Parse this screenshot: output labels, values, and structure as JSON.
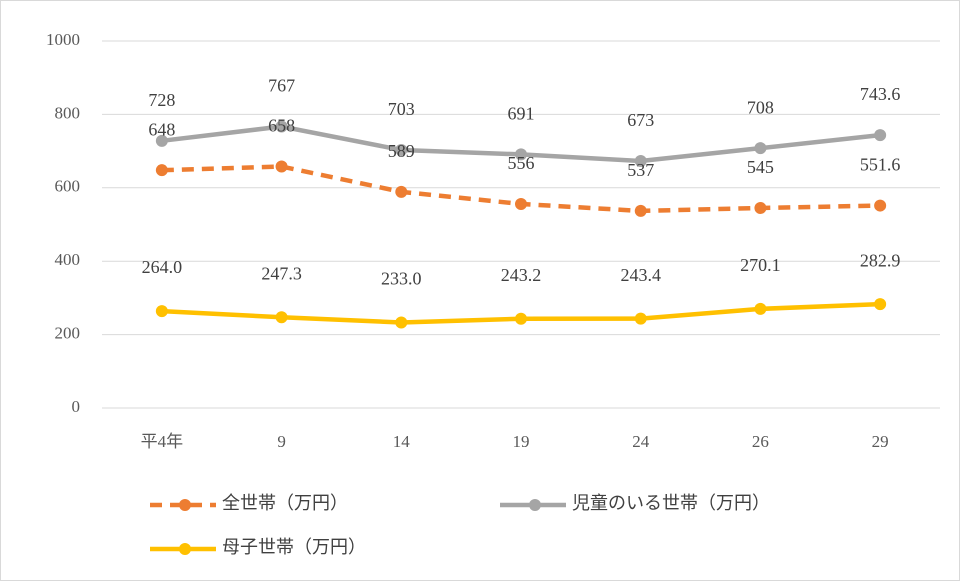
{
  "chart_data": {
    "type": "line",
    "categories": [
      "平4年",
      "9",
      "14",
      "19",
      "24",
      "26",
      "29"
    ],
    "series": [
      {
        "name": "全世帯（万円）",
        "color": "#ED7D31",
        "line_style": "dashed",
        "values": [
          648,
          658,
          589,
          556,
          537,
          545,
          551.6
        ]
      },
      {
        "name": "児童のいる世帯（万円）",
        "color": "#A5A5A5",
        "line_style": "solid",
        "values": [
          728,
          767,
          703,
          691,
          673,
          708,
          743.6
        ]
      },
      {
        "name": "母子世帯（万円）",
        "color": "#FFC000",
        "line_style": "solid",
        "values": [
          264,
          247.3,
          233,
          243.2,
          243.4,
          270.1,
          282.9
        ],
        "value_labels": [
          "264.0",
          "247.3",
          "233.0",
          "243.2",
          "243.4",
          "270.1",
          "282.9"
        ]
      }
    ],
    "ylim": [
      0,
      1000
    ],
    "yticks": [
      0,
      200,
      400,
      600,
      800,
      1000
    ],
    "grid": true
  }
}
